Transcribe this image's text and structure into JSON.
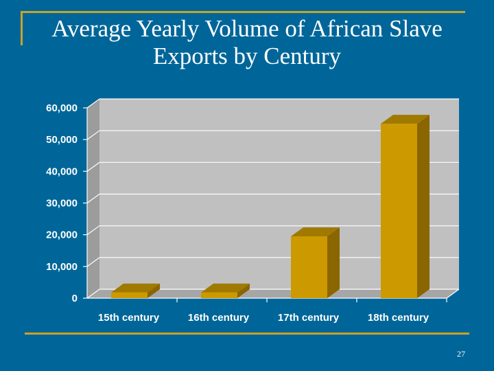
{
  "slide": {
    "title_line1": "Average Yearly Volume of African Slave",
    "title_line2": "Exports by Century",
    "page_number": "27"
  },
  "colors": {
    "background": "#006699",
    "accent_rule": "#c9a227",
    "bar_front": "#cc9900",
    "bar_top": "#a07a00",
    "bar_side": "#8a6500",
    "plot_back": "#c0c0c0",
    "plot_floor": "#a6a6a6",
    "plot_wall": "#9c9c9c",
    "gridline": "#ffffff"
  },
  "chart_data": {
    "type": "bar",
    "title": "Average Yearly Volume of African Slave Exports by Century",
    "categories": [
      "15th century",
      "16th century",
      "17th century",
      "18th century"
    ],
    "values": [
      1800,
      1800,
      19500,
      55000
    ],
    "ylim": [
      0,
      60000
    ],
    "yticks": [
      0,
      10000,
      20000,
      30000,
      40000,
      50000,
      60000
    ],
    "ytick_labels": [
      "0",
      "10,000",
      "20,000",
      "30,000",
      "40,000",
      "50,000",
      "60,000"
    ],
    "xlabel": "",
    "ylabel": "",
    "grid": true,
    "style": "3d"
  }
}
